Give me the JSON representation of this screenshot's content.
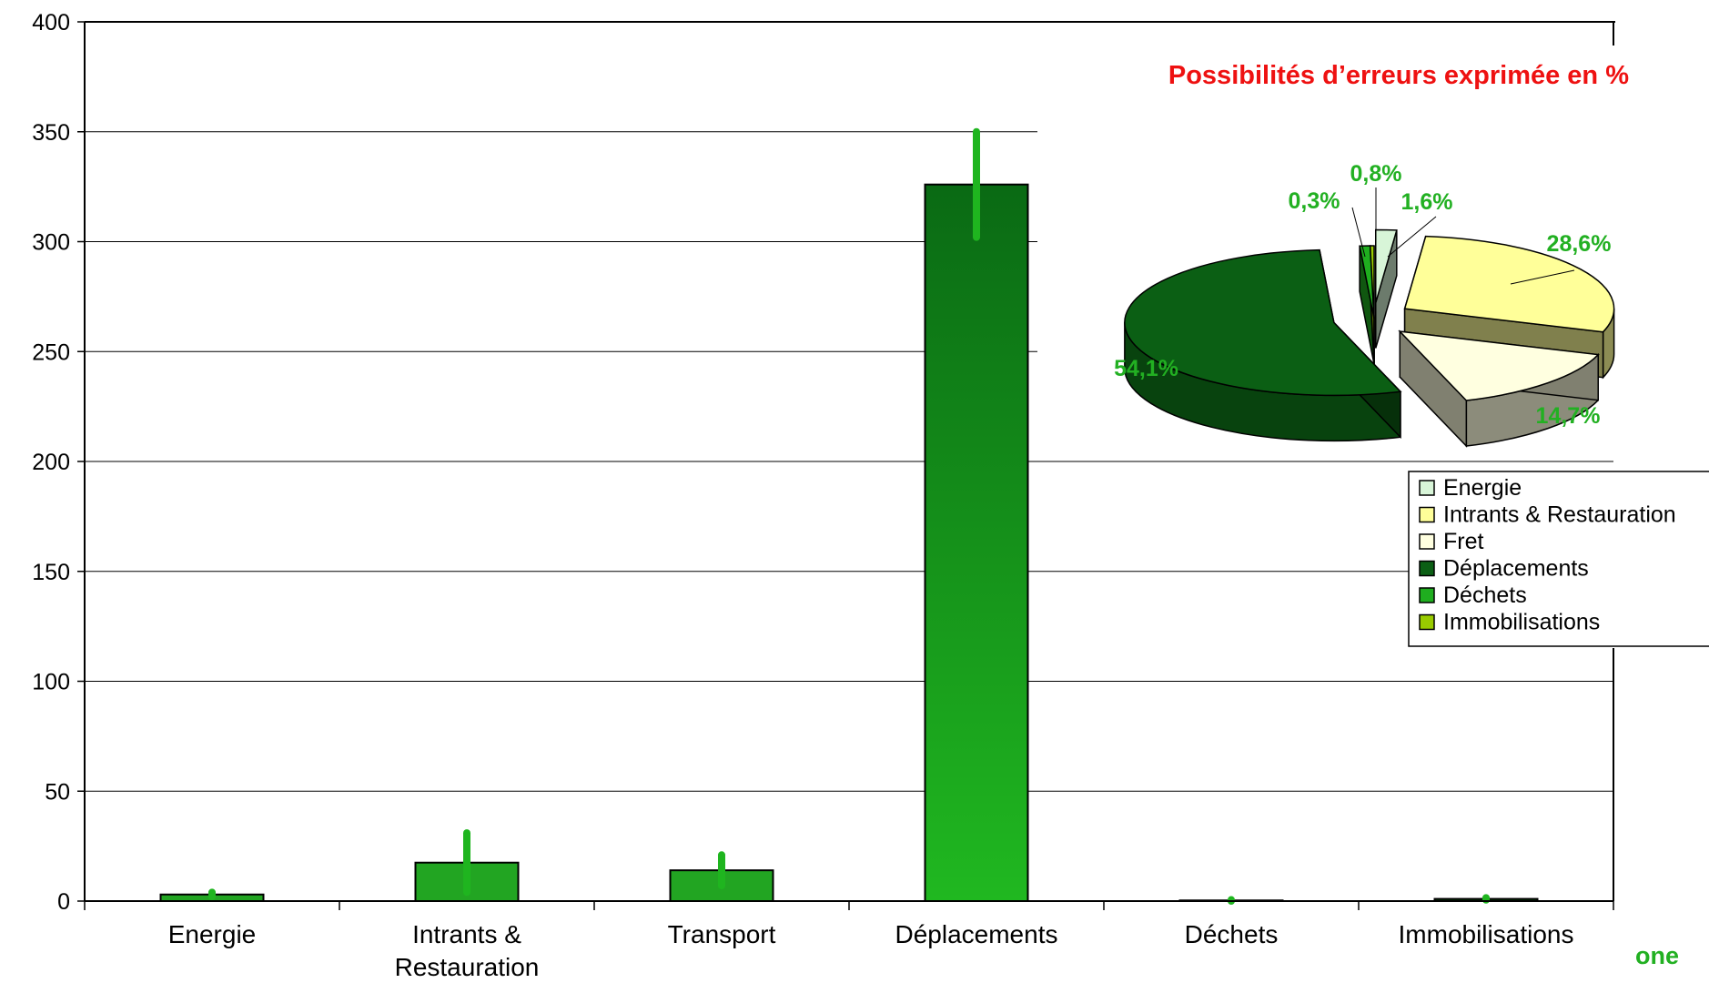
{
  "chart_data": [
    {
      "type": "bar",
      "categories": [
        "Energie",
        "Intrants & Restauration",
        "Transport",
        "Déplacements",
        "Déchets",
        "Immobilisations"
      ],
      "category_lines": [
        [
          "Energie"
        ],
        [
          "Intrants &",
          "Restauration"
        ],
        [
          "Transport"
        ],
        [
          "Déplacements"
        ],
        [
          "Déchets"
        ],
        [
          "Immobilisations"
        ]
      ],
      "values": [
        3,
        17.5,
        14,
        326,
        0.3,
        1
      ],
      "error_low": [
        2,
        4,
        7,
        302,
        0,
        0.5
      ],
      "error_high": [
        4,
        31,
        21,
        350,
        0.6,
        1.5
      ],
      "ylim": [
        0,
        400
      ],
      "yticks": [
        "0",
        "50",
        "100",
        "150",
        "200",
        "250",
        "300",
        "350",
        "400"
      ],
      "grid": true,
      "error_bar_color": "#1fb51f",
      "bar_colors": [
        "#22a522",
        "#22a522",
        "#22a522",
        "#1a9a1a",
        "#22a522",
        "#0b4f0b"
      ]
    },
    {
      "type": "pie",
      "title": "Possibilités d’erreurs exprimée en %",
      "legend_position": "right",
      "slices": [
        {
          "name": "Energie",
          "value": 1.6,
          "label": "1,6%",
          "color": "#d8f5d8"
        },
        {
          "name": "Intrants & Restauration",
          "value": 28.6,
          "label": "28,6%",
          "color": "#ffff99"
        },
        {
          "name": "Fret",
          "value": 14.7,
          "label": "14,7%",
          "color": "#ffffe0"
        },
        {
          "name": "Déplacements",
          "value": 54.1,
          "label": "54,1%",
          "color": "#0b5f14"
        },
        {
          "name": "Déchets",
          "value": 0.8,
          "label": "0,8%",
          "color": "#1fae1f"
        },
        {
          "name": "Immobilisations",
          "value": 0.3,
          "label": "0,3%",
          "color": "#99cc00"
        }
      ]
    }
  ],
  "footer_fragment": "one"
}
